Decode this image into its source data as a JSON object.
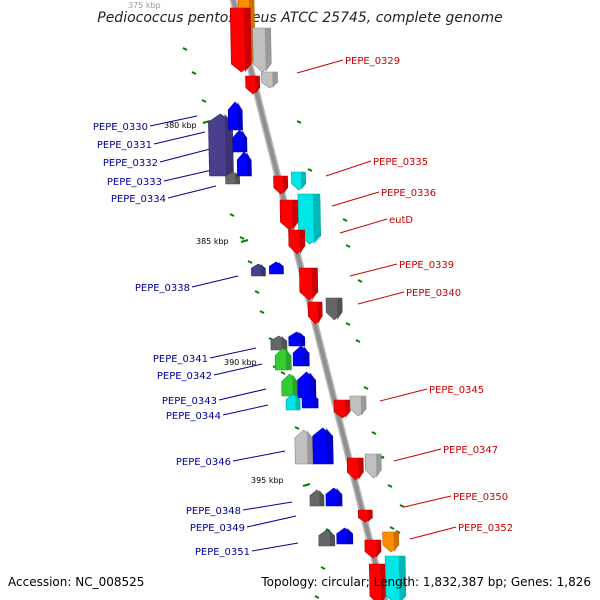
{
  "title": "Pediococcus pentosaceus ATCC 25745, complete genome",
  "accession": "Accession: NC_008525",
  "topology": "Topology: circular; Length: 1,832,387 bp; Genes: 1,826",
  "colors": {
    "backbone": "#909090",
    "forward_label": "#cc0000",
    "reverse_label": "#000099",
    "tick": "#008000",
    "red": "#ff0000",
    "blue": "#0000ff",
    "navy": "#4a3f8c",
    "cyan": "#00e5e5",
    "green": "#33cc33",
    "gray": "#c0c0c0",
    "darkgray": "#666666",
    "orange": "#ff8c00"
  },
  "kbp_marks": [
    "375 kbp",
    "380 kbp",
    "385 kbp",
    "390 kbp",
    "395 kbp"
  ],
  "forward_labels": [
    "PEPE_0329",
    "PEPE_0335",
    "PEPE_0336",
    "eutD",
    "PEPE_0339",
    "PEPE_0340",
    "PEPE_0345",
    "PEPE_0347",
    "PEPE_0350",
    "PEPE_0352"
  ],
  "reverse_labels": [
    "PEPE_0330",
    "PEPE_0331",
    "PEPE_0332",
    "PEPE_0333",
    "PEPE_0334",
    "PEPE_0338",
    "PEPE_0341",
    "PEPE_0342",
    "PEPE_0343",
    "PEPE_0344",
    "PEPE_0346",
    "PEPE_0348",
    "PEPE_0349",
    "PEPE_0351"
  ]
}
